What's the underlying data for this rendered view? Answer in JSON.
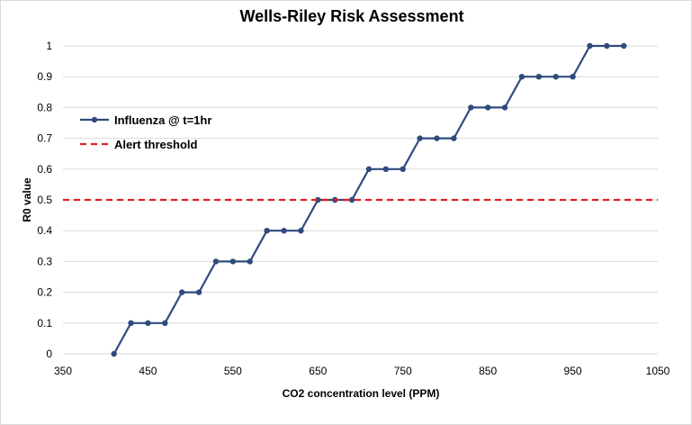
{
  "chart_data": {
    "type": "line",
    "title": "Wells-Riley Risk Assessment",
    "xlabel": "CO2 concentration level (PPM)",
    "ylabel": "R0 value",
    "xlim": [
      350,
      1050
    ],
    "ylim": [
      0,
      1
    ],
    "xticks": [
      350,
      450,
      550,
      650,
      750,
      850,
      950,
      1050
    ],
    "yticks": [
      0,
      0.1,
      0.2,
      0.3,
      0.4,
      0.5,
      0.6,
      0.7,
      0.8,
      0.9,
      1
    ],
    "grid": "horizontal",
    "legend_position": "top-left",
    "series": [
      {
        "name": "Influenza @ t=1hr",
        "color": "#2f4b7c",
        "style": "solid-with-markers",
        "x": [
          410,
          430,
          450,
          470,
          490,
          510,
          530,
          550,
          570,
          590,
          610,
          630,
          650,
          670,
          690,
          710,
          730,
          750,
          770,
          790,
          810,
          830,
          850,
          870,
          890,
          910,
          930,
          950,
          970,
          990,
          1010
        ],
        "y": [
          0,
          0.1,
          0.1,
          0.1,
          0.2,
          0.2,
          0.3,
          0.3,
          0.3,
          0.4,
          0.4,
          0.4,
          0.5,
          0.5,
          0.5,
          0.6,
          0.6,
          0.6,
          0.7,
          0.7,
          0.7,
          0.8,
          0.8,
          0.8,
          0.9,
          0.9,
          0.9,
          0.9,
          1,
          1,
          1
        ]
      },
      {
        "name": "Alert threshold",
        "color": "#e02020",
        "style": "dashed",
        "x": [
          350,
          1050
        ],
        "y": [
          0.5,
          0.5
        ]
      }
    ]
  }
}
